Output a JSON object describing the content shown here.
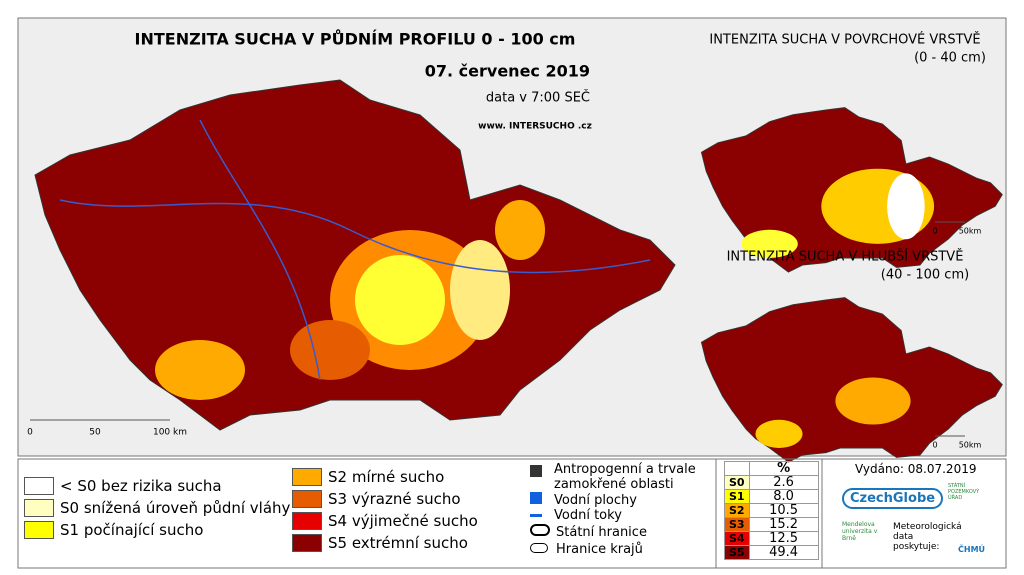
{
  "header": {
    "title": "INTENZITA SUCHA V PŮDNÍM PROFILU 0 - 100 cm",
    "date": "07. červenec 2019",
    "time": "data v 7:00 SEČ",
    "website": "www. INTERSUCHO .cz"
  },
  "main_map": {
    "scale": [
      "0",
      "50",
      "100 km"
    ]
  },
  "insets": [
    {
      "title": "INTENZITA SUCHA V POVRCHOVÉ VRSTVĚ",
      "subtitle": "(0 - 40 cm)",
      "scale": [
        "0",
        "50km"
      ]
    },
    {
      "title": "INTENZITA SUCHA V HLUBŠÍ VRSTVĚ",
      "subtitle": "(40 - 100 cm)",
      "scale": [
        "0",
        "50km"
      ]
    }
  ],
  "legend": {
    "classes": [
      "< S0 bez rizika sucha",
      "S0 snížená úroveň půdní vláhy",
      "S1 počínající sucho",
      "S2 mírné sucho",
      "S3 výrazné sucho",
      "S4 výjimečné sucho",
      "S5 extrémní sucho"
    ],
    "features": [
      "Antropogenní a trvale zamokřené oblasti",
      "Vodní plochy",
      "Vodní toky",
      "Státní hranice",
      "Hranice krajů"
    ]
  },
  "stats": {
    "header": "%",
    "rows": [
      [
        "S0",
        "2.6"
      ],
      [
        "S1",
        "8.0"
      ],
      [
        "S2",
        "10.5"
      ],
      [
        "S3",
        "15.2"
      ],
      [
        "S4",
        "12.5"
      ],
      [
        "S5",
        "49.4"
      ]
    ]
  },
  "issued": "Vydáno: 08.07.2019",
  "logos": {
    "czechglobe": "CzechGlobe",
    "mendel": "Mendelova univerzita v Brně",
    "meteo": "Meteorologická data poskytuje:",
    "chmu": "ČHMÚ",
    "spu": "STÁTNÍ POZEMKOVÝ ÚŘAD"
  }
}
